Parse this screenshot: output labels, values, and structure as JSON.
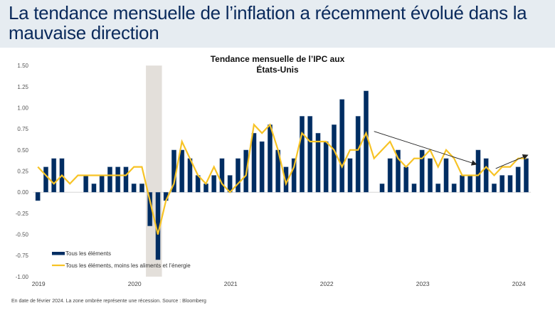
{
  "header": {
    "title": "La tendance mensuelle de l’inflation a récemment évolué dans la mauvaise direction"
  },
  "footnote": "En date de février 2024. La zone ombrée représente une récession. Source : Bloomberg",
  "colors": {
    "header_bg": "#e6ecf1",
    "title_text": "#0a2a5c",
    "bar": "#002d62",
    "line": "#f7c325",
    "recession": "#e3dfda",
    "arrow": "#222222"
  },
  "chart_data": {
    "type": "bar+line",
    "title": "Tendance mensuelle de l’IPC aux États-Unis",
    "title_lines": [
      "Tendance mensuelle de l’IPC aux",
      "États-Unis"
    ],
    "xlabel": "",
    "ylabel": "",
    "ylim": [
      -1.0,
      1.5
    ],
    "yticks": [
      "1.50",
      "1.25",
      "1.00",
      "0.75",
      "0.50",
      "0.25",
      "0.00",
      "-0.25",
      "-0.50",
      "-0.75",
      "-1.00"
    ],
    "ytick_values": [
      1.5,
      1.25,
      1.0,
      0.75,
      0.5,
      0.25,
      0.0,
      -0.25,
      -0.5,
      -0.75,
      -1.0
    ],
    "xticks": [
      {
        "label": "2019",
        "month_index": 0
      },
      {
        "label": "2020",
        "month_index": 12
      },
      {
        "label": "2021",
        "month_index": 24
      },
      {
        "label": "2022",
        "month_index": 36
      },
      {
        "label": "2023",
        "month_index": 48
      },
      {
        "label": "2024",
        "month_index": 60
      }
    ],
    "period": {
      "start": "2019-01",
      "end": "2024-02",
      "frequency": "monthly"
    },
    "recession": {
      "start_month_index": 13.5,
      "end_month_index": 15.5,
      "label": "Récession"
    },
    "grid": false,
    "legend": {
      "position": "bottom-left",
      "entries": [
        {
          "name": "Tous les éléments",
          "kind": "bar"
        },
        {
          "name": "Tous les éléments, moins les aliments et l’énergie",
          "kind": "line"
        }
      ]
    },
    "series": [
      {
        "name": "Tous les éléments",
        "kind": "bar",
        "values": [
          -0.1,
          0.3,
          0.4,
          0.4,
          0.0,
          0.0,
          0.2,
          0.1,
          0.2,
          0.3,
          0.3,
          0.3,
          0.1,
          0.1,
          -0.4,
          -0.8,
          -0.1,
          0.5,
          0.5,
          0.4,
          0.2,
          0.1,
          0.2,
          0.4,
          0.2,
          0.4,
          0.5,
          0.7,
          0.6,
          0.8,
          0.5,
          0.3,
          0.4,
          0.9,
          0.9,
          0.7,
          0.6,
          0.8,
          1.1,
          0.4,
          0.9,
          1.2,
          0.0,
          0.1,
          0.4,
          0.5,
          0.3,
          0.1,
          0.5,
          0.4,
          0.1,
          0.4,
          0.1,
          0.2,
          0.2,
          0.5,
          0.4,
          0.1,
          0.2,
          0.2,
          0.3,
          0.4
        ]
      },
      {
        "name": "Tous les éléments, moins les aliments et l’énergie",
        "kind": "line",
        "values": [
          0.3,
          0.2,
          0.1,
          0.2,
          0.1,
          0.2,
          0.2,
          0.2,
          0.2,
          0.2,
          0.2,
          0.2,
          0.3,
          0.3,
          -0.1,
          -0.5,
          -0.1,
          0.1,
          0.6,
          0.4,
          0.2,
          0.1,
          0.3,
          0.1,
          0.0,
          0.1,
          0.2,
          0.8,
          0.7,
          0.8,
          0.5,
          0.1,
          0.3,
          0.7,
          0.6,
          0.6,
          0.6,
          0.5,
          0.3,
          0.5,
          0.5,
          0.7,
          0.4,
          0.5,
          0.6,
          0.4,
          0.3,
          0.4,
          0.4,
          0.5,
          0.3,
          0.5,
          0.4,
          0.2,
          0.2,
          0.2,
          0.3,
          0.2,
          0.3,
          0.3,
          0.4,
          0.4
        ]
      }
    ],
    "annotations": [
      {
        "type": "arrow",
        "from": {
          "month_index": 42.0,
          "value": 0.72
        },
        "to": {
          "month_index": 54.8,
          "value": 0.33
        },
        "meaning": "downward trend"
      },
      {
        "type": "arrow",
        "from": {
          "month_index": 57.2,
          "value": 0.28
        },
        "to": {
          "month_index": 61.2,
          "value": 0.44
        },
        "meaning": "upward trend"
      }
    ]
  }
}
